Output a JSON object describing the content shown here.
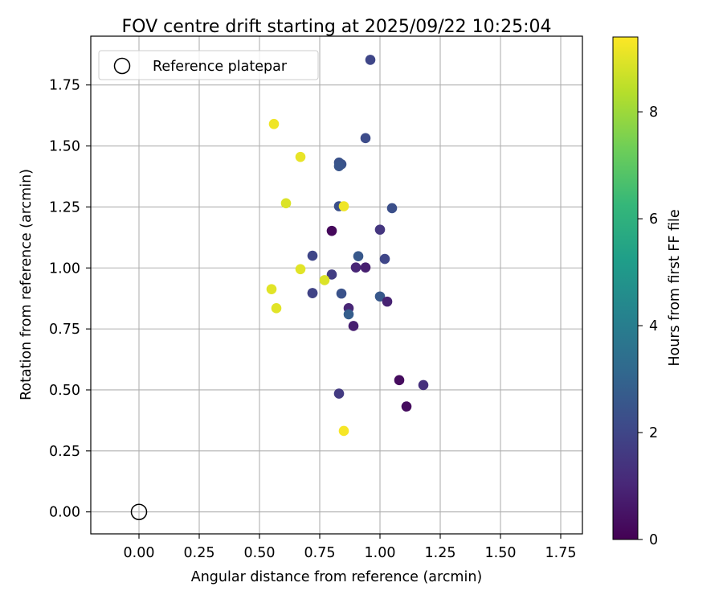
{
  "chart_data": {
    "type": "scatter",
    "title": "FOV centre drift starting at 2025/09/22 10:25:04",
    "xlabel": "Angular distance from reference (arcmin)",
    "ylabel": "Rotation from reference (arcmin)",
    "xlim": [
      -0.2,
      1.84
    ],
    "ylim": [
      -0.09,
      1.95
    ],
    "xticks": [
      0.0,
      0.25,
      0.5,
      0.75,
      1.0,
      1.25,
      1.5,
      1.75
    ],
    "xtick_labels": [
      "0.00",
      "0.25",
      "0.50",
      "0.75",
      "1.00",
      "1.25",
      "1.50",
      "1.75"
    ],
    "yticks": [
      0.0,
      0.25,
      0.5,
      0.75,
      1.0,
      1.25,
      1.5,
      1.75
    ],
    "ytick_labels": [
      "0.00",
      "0.25",
      "0.50",
      "0.75",
      "1.00",
      "1.25",
      "1.50",
      "1.75"
    ],
    "grid": true,
    "legend": {
      "position": "top-left",
      "entries": [
        {
          "label": "Reference platepar",
          "marker": "open-circle"
        }
      ]
    },
    "reference_point": {
      "x": 0.0,
      "y": 0.0
    },
    "colorbar": {
      "label": "Hours from first FF file",
      "colormap": "viridis",
      "range": [
        0,
        9.4
      ],
      "ticks": [
        0,
        2,
        4,
        6,
        8
      ],
      "tick_labels": [
        "0",
        "2",
        "4",
        "6",
        "8"
      ],
      "stops": [
        "#440154",
        "#482878",
        "#3e4989",
        "#31688e",
        "#26828e",
        "#1f9e89",
        "#35b779",
        "#6ece58",
        "#b5de2b",
        "#fde725"
      ]
    },
    "series": [
      {
        "name": "Drift",
        "color_key": "hours",
        "points": [
          {
            "x": 0.96,
            "y": 1.853,
            "hours": 2.0
          },
          {
            "x": 0.94,
            "y": 1.532,
            "hours": 2.2
          },
          {
            "x": 0.83,
            "y": 1.432,
            "hours": 2.4
          },
          {
            "x": 0.84,
            "y": 1.425,
            "hours": 2.4
          },
          {
            "x": 0.83,
            "y": 1.417,
            "hours": 2.5
          },
          {
            "x": 0.83,
            "y": 1.253,
            "hours": 2.3
          },
          {
            "x": 1.05,
            "y": 1.245,
            "hours": 2.3
          },
          {
            "x": 1.0,
            "y": 1.157,
            "hours": 1.5
          },
          {
            "x": 0.8,
            "y": 1.152,
            "hours": 0.2
          },
          {
            "x": 0.72,
            "y": 1.05,
            "hours": 2.0
          },
          {
            "x": 0.91,
            "y": 1.048,
            "hours": 2.6
          },
          {
            "x": 1.02,
            "y": 1.037,
            "hours": 2.0
          },
          {
            "x": 0.9,
            "y": 1.002,
            "hours": 1.0
          },
          {
            "x": 0.94,
            "y": 1.002,
            "hours": 0.8
          },
          {
            "x": 0.8,
            "y": 0.973,
            "hours": 1.7
          },
          {
            "x": 0.72,
            "y": 0.897,
            "hours": 1.8
          },
          {
            "x": 0.72,
            "y": 0.897,
            "hours": 1.9
          },
          {
            "x": 0.84,
            "y": 0.895,
            "hours": 2.4
          },
          {
            "x": 1.0,
            "y": 0.883,
            "hours": 2.6
          },
          {
            "x": 1.03,
            "y": 0.862,
            "hours": 0.9
          },
          {
            "x": 0.87,
            "y": 0.835,
            "hours": 1.0
          },
          {
            "x": 0.87,
            "y": 0.81,
            "hours": 2.8
          },
          {
            "x": 0.89,
            "y": 0.762,
            "hours": 0.8
          },
          {
            "x": 1.08,
            "y": 0.54,
            "hours": 0.3
          },
          {
            "x": 1.18,
            "y": 0.52,
            "hours": 1.3
          },
          {
            "x": 0.83,
            "y": 0.485,
            "hours": 1.6
          },
          {
            "x": 1.11,
            "y": 0.432,
            "hours": 0.3
          },
          {
            "x": 0.56,
            "y": 1.59,
            "hours": 9.2
          },
          {
            "x": 0.67,
            "y": 1.455,
            "hours": 9.1
          },
          {
            "x": 0.61,
            "y": 1.265,
            "hours": 8.9
          },
          {
            "x": 0.85,
            "y": 1.253,
            "hours": 9.2
          },
          {
            "x": 0.67,
            "y": 0.995,
            "hours": 9.0
          },
          {
            "x": 0.77,
            "y": 0.95,
            "hours": 8.9
          },
          {
            "x": 0.55,
            "y": 0.913,
            "hours": 9.0
          },
          {
            "x": 0.57,
            "y": 0.835,
            "hours": 9.0
          },
          {
            "x": 0.85,
            "y": 0.332,
            "hours": 9.3
          }
        ]
      }
    ]
  }
}
